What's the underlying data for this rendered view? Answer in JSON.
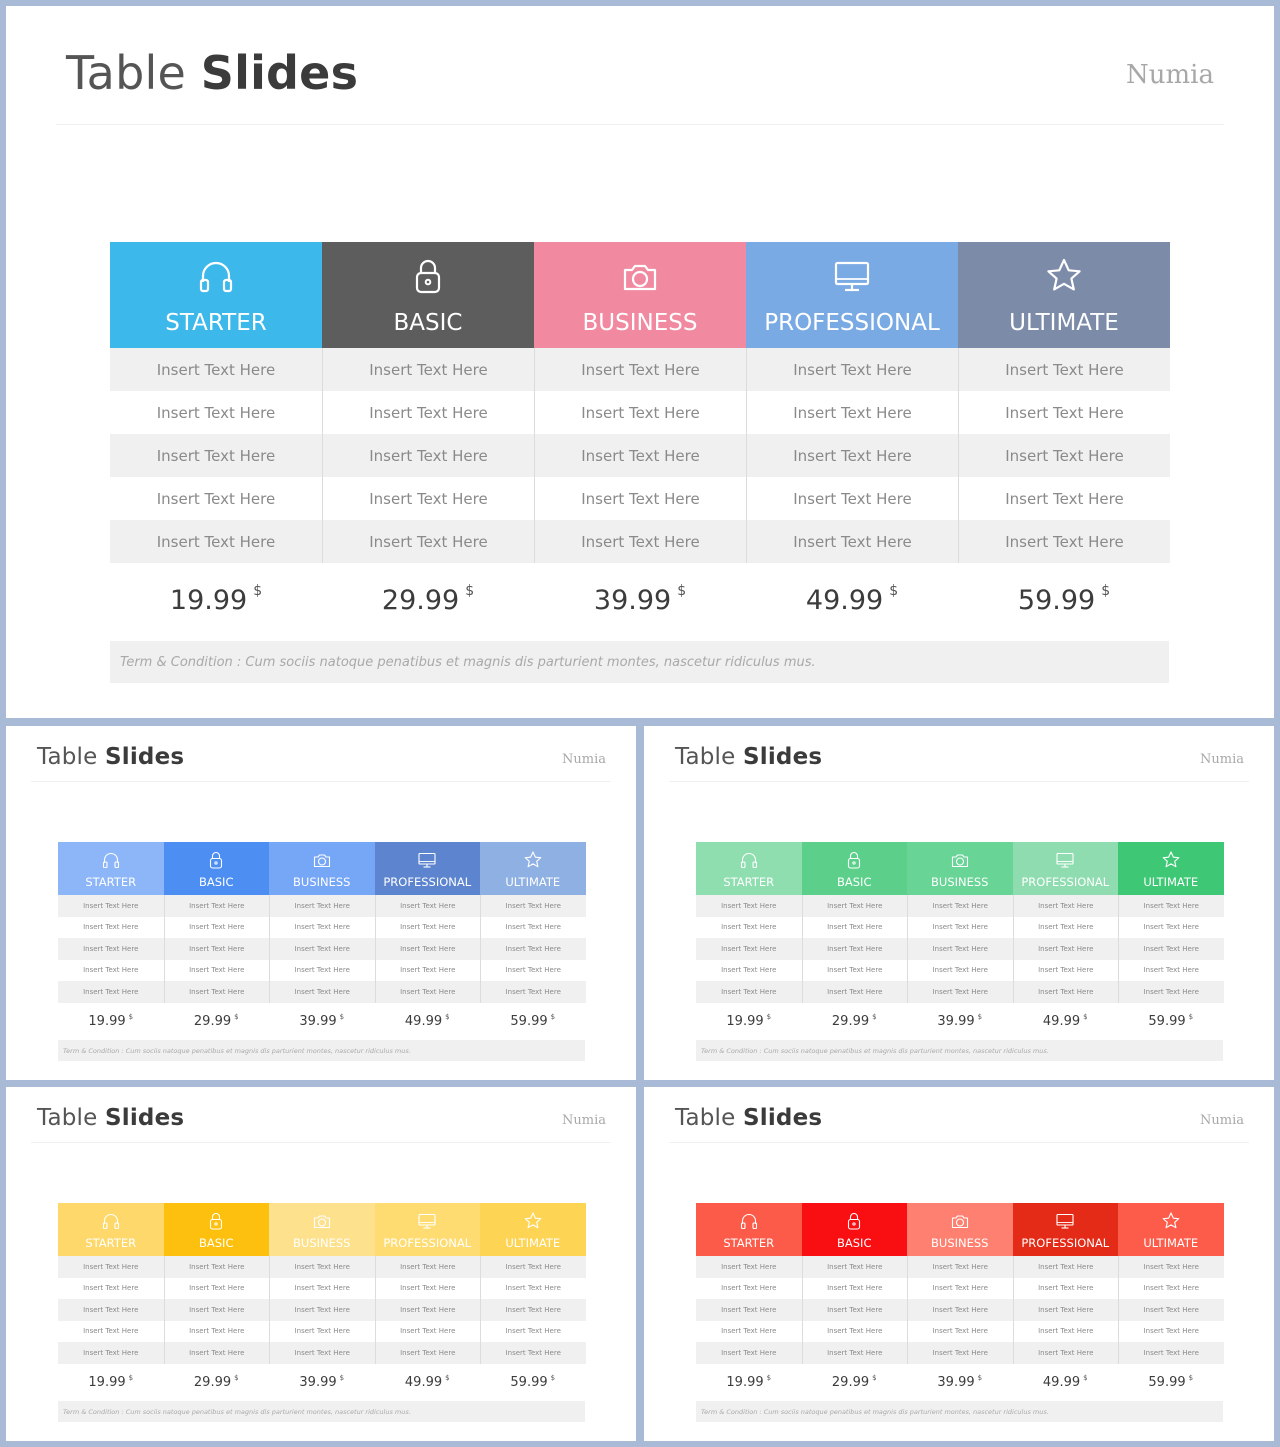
{
  "title_light": "Table",
  "title_bold": "Slides",
  "brand": "Numia",
  "plans": [
    {
      "name": "STARTER",
      "icon": "headphones-icon",
      "price": "19.99"
    },
    {
      "name": "BASIC",
      "icon": "lock-icon",
      "price": "29.99"
    },
    {
      "name": "BUSINESS",
      "icon": "camera-icon",
      "price": "39.99"
    },
    {
      "name": "PROFESSIONAL",
      "icon": "monitor-icon",
      "price": "49.99"
    },
    {
      "name": "ULTIMATE",
      "icon": "star-icon",
      "price": "59.99"
    }
  ],
  "currency": "$",
  "row_text": "Insert Text Here",
  "row_count": 5,
  "terms": "Term & Condition : Cum sociis natoque penatibus et magnis dis parturient montes, nascetur ridiculus mus.",
  "slides": [
    {
      "id": "main",
      "header_colors": [
        "#3db8ea",
        "#5d5d5d",
        "#f18aa0",
        "#7aaae3",
        "#7b8ba8"
      ],
      "header_text_color": "#ffffff"
    },
    {
      "id": "blue",
      "header_colors": [
        "#8db6f9",
        "#4d8ef3",
        "#76a6f6",
        "#5d85cf",
        "#8fb0e3"
      ],
      "header_text_color": "#ffffff"
    },
    {
      "id": "green",
      "header_colors": [
        "#8fdeb0",
        "#5cd08b",
        "#68d495",
        "#8edcaf",
        "#3ec876"
      ],
      "header_text_color": "#ffffff"
    },
    {
      "id": "yellow",
      "header_colors": [
        "#fed86a",
        "#fdc00e",
        "#fee18c",
        "#fedc72",
        "#fed455"
      ],
      "header_text_color": "#ffffff"
    },
    {
      "id": "red",
      "header_colors": [
        "#fd5b4a",
        "#f90e12",
        "#fd8070",
        "#e42b17",
        "#fd5c4b"
      ],
      "header_text_color": "#ffffff"
    }
  ]
}
